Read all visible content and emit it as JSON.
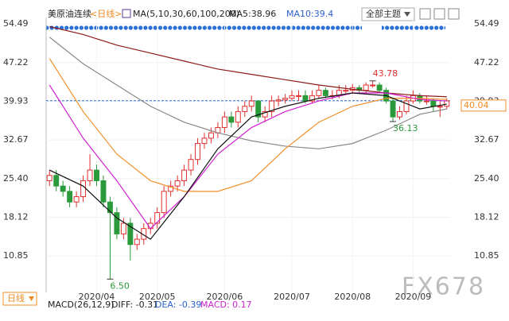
{
  "header": {
    "title": "美原油连续",
    "period": "<日线>",
    "ma_label": "MA(5,10,30,60,100,200)",
    "ma5": "MA5:38.96",
    "ma10": "MA10:39.4",
    "theme": "全部主题"
  },
  "chart_data": {
    "type": "candlestick",
    "ylim": [
      4,
      55.7
    ],
    "yticks": [
      54.49,
      47.22,
      39.93,
      32.67,
      {
        "value": 25.4,
        "label": "25.40"
      },
      18.12,
      10.85
    ],
    "xticks": [
      {
        "value": 7,
        "label": "2020/04"
      },
      {
        "value": 16,
        "label": "2020/05"
      },
      {
        "value": 26,
        "label": "2020/06"
      },
      {
        "value": 36,
        "label": "2020/07"
      },
      {
        "value": 45,
        "label": "2020/08"
      },
      {
        "value": 54,
        "label": "2020/09"
      }
    ],
    "up_color": "#e03030",
    "down_color": "#2a9a3a",
    "open": [
      25,
      26,
      24,
      23,
      21,
      22,
      25,
      27,
      25,
      21,
      19,
      15,
      17,
      13,
      14,
      16,
      17,
      19,
      23,
      24,
      25,
      27,
      29,
      32,
      33,
      34,
      35,
      37,
      36,
      38,
      39,
      40,
      37,
      38,
      40,
      40.2,
      40.5,
      41,
      41,
      40,
      41,
      42,
      41,
      41,
      42,
      42,
      42.5,
      42,
      43,
      43,
      42,
      40,
      37,
      38,
      40,
      41,
      40,
      40,
      39,
      39
    ],
    "high": [
      27,
      27,
      25,
      24,
      23,
      26,
      30,
      28,
      26,
      22,
      20,
      18,
      18,
      15,
      17,
      18,
      20,
      24,
      25,
      26,
      28,
      30,
      33,
      34,
      35,
      36,
      38,
      38,
      39,
      40,
      41,
      40,
      39,
      41,
      41,
      41.3,
      42,
      42,
      42,
      42,
      43,
      42.5,
      42,
      43,
      43,
      43.2,
      43,
      43.5,
      43.78,
      43.5,
      42.5,
      40.5,
      39,
      41,
      42,
      41.5,
      41,
      40.5,
      40,
      40.5
    ],
    "low": [
      24,
      23,
      22,
      20,
      20,
      21,
      24,
      24,
      20,
      6.5,
      14,
      14,
      10,
      12,
      13,
      15,
      16,
      18,
      22,
      23,
      24,
      26,
      28,
      31,
      32,
      33,
      34,
      35,
      35,
      37,
      38,
      36,
      36,
      37,
      39,
      39.5,
      40,
      40,
      39.5,
      39.5,
      40.5,
      40.5,
      40.3,
      40.5,
      41.3,
      41.5,
      41.5,
      41.5,
      42.5,
      41.5,
      39.5,
      36.13,
      36.5,
      37.5,
      39.5,
      39.5,
      39.3,
      38,
      37,
      38.5
    ],
    "close": [
      26,
      24,
      23,
      21,
      22,
      25,
      27,
      25,
      21,
      19,
      15,
      17,
      13,
      14,
      16,
      17,
      19,
      23,
      24,
      25,
      27,
      29,
      32,
      33,
      34,
      35,
      37,
      36,
      38,
      39,
      40,
      37,
      38,
      40,
      40.2,
      40.5,
      41,
      41,
      40,
      41,
      42,
      41,
      41,
      42,
      42,
      42.5,
      42,
      43,
      43,
      42,
      40,
      37,
      38,
      40,
      41,
      40,
      40,
      39,
      39,
      40
    ],
    "ma_x": [
      0,
      5,
      10,
      15,
      20,
      25,
      30,
      35,
      40,
      45,
      50,
      55,
      59
    ],
    "series": [
      {
        "color": "#8b1a1a",
        "values": [
          54,
          52.5,
          50.5,
          49,
          47.5,
          46,
          45,
          44,
          43,
          42.2,
          41.5,
          41,
          40.8
        ]
      },
      {
        "color": "#888888",
        "values": [
          52,
          47,
          43,
          39,
          36,
          34,
          32.5,
          31.5,
          31,
          32,
          34.5,
          37.5,
          38.5
        ]
      },
      {
        "color": "#f0902a",
        "values": [
          48,
          38,
          30,
          25,
          23,
          23,
          25,
          31,
          36,
          39,
          40.5,
          40.5,
          40.3
        ]
      },
      {
        "color": "#d020d0",
        "values": [
          43,
          33,
          25,
          16,
          22,
          30,
          35,
          38,
          40,
          41.5,
          41.5,
          40.3,
          40
        ]
      },
      {
        "color": "#111111",
        "values": [
          27,
          24,
          18,
          14,
          22,
          31,
          37,
          39,
          40.5,
          41.5,
          41,
          38.5,
          39.4
        ]
      }
    ],
    "current_price": 40.04,
    "annotations": [
      {
        "value": 43.78,
        "label": "43.78",
        "color": "#e03030"
      },
      {
        "value": 36.13,
        "label": "36.13",
        "color": "#2a9a3a"
      },
      {
        "value": 6.5,
        "label": "6.50",
        "color": "#2a9a3a"
      }
    ]
  },
  "footer": {
    "period_select": "日线",
    "macd": "MACD(26,12,9)",
    "diff": "DIFF: -0.31",
    "dea": "DEA: -0.39",
    "macd_value": "MACD: 0.17",
    "watermark": "FX678"
  }
}
